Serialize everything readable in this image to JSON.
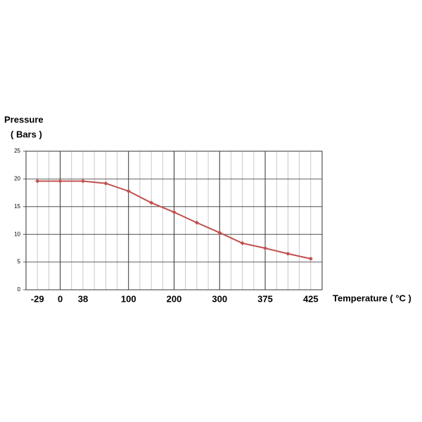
{
  "chart_data": {
    "type": "line",
    "y_label": [
      "Pressure",
      "( Bars )"
    ],
    "x_label": "Temperature ( °C )",
    "categories": [
      "-29",
      "0",
      "38",
      null,
      "100",
      null,
      "200",
      null,
      "300",
      null,
      "375",
      null,
      "425"
    ],
    "values": [
      19.6,
      19.6,
      19.6,
      19.2,
      17.8,
      15.7,
      14.0,
      12.1,
      10.3,
      8.4,
      7.5,
      6.5,
      5.6
    ],
    "color": "#c0504d",
    "ylim": [
      0,
      25
    ],
    "yticks": [
      0,
      5,
      10,
      15,
      20,
      25
    ],
    "grid": true
  }
}
